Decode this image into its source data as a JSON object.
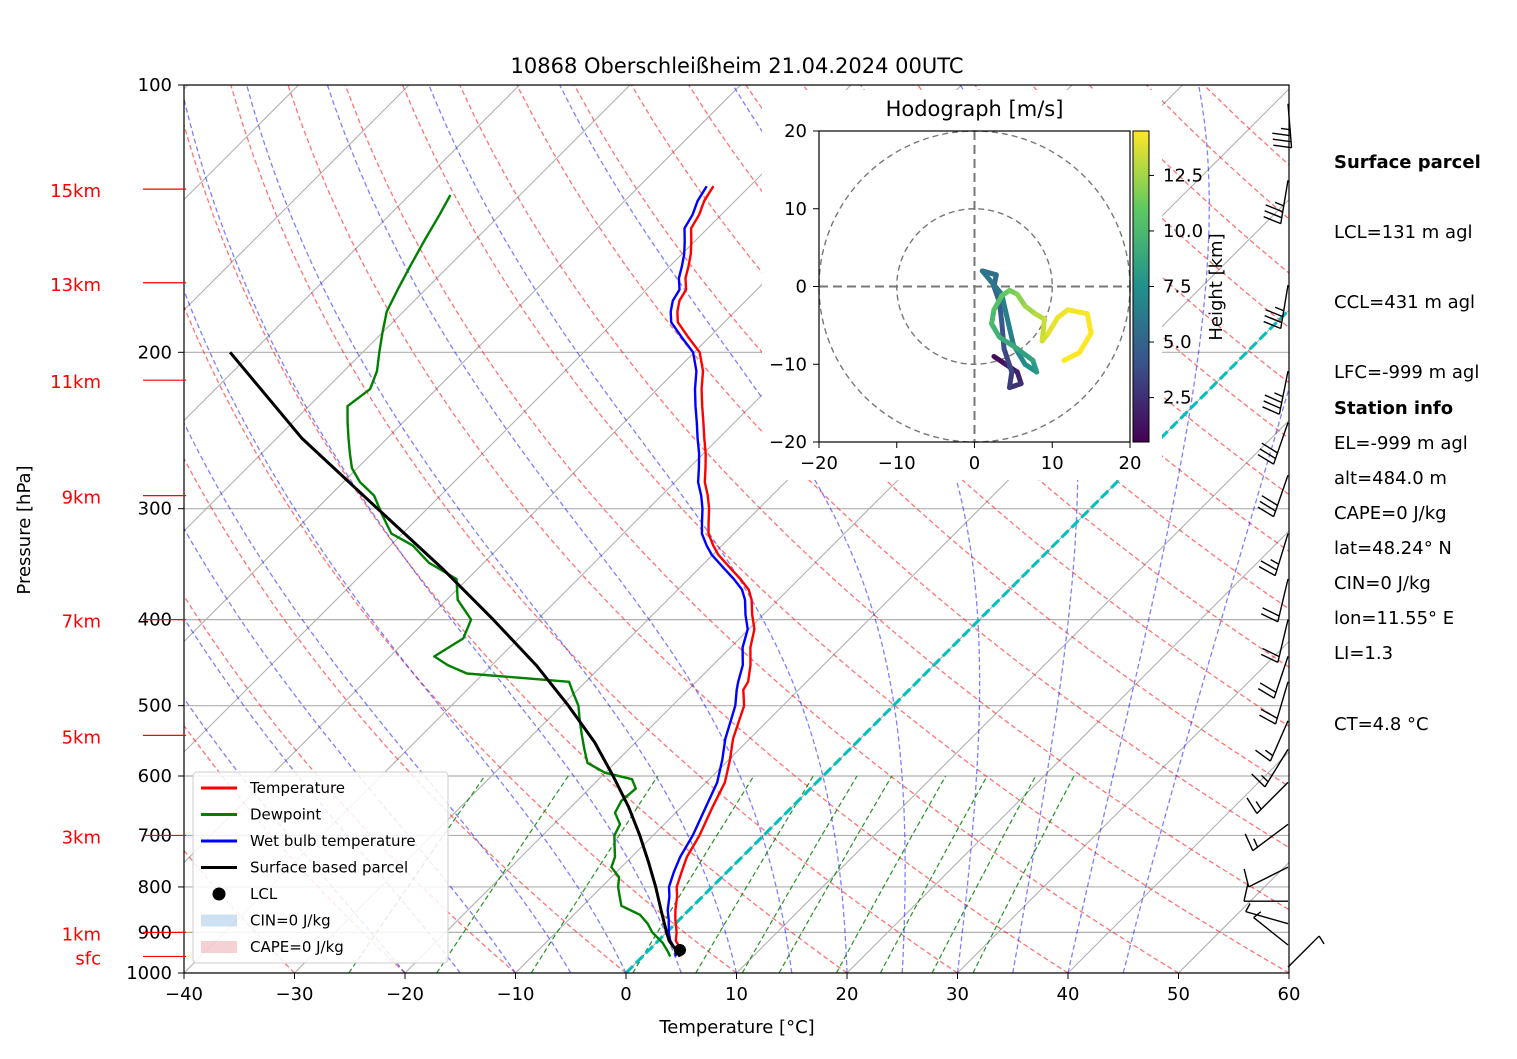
{
  "chart_data": {
    "type": "line",
    "title": "10868 Oberschleißheim 21.04.2024 00UTC",
    "xlabel": "Temperature [°C]",
    "ylabel": "Pressure [hPa]",
    "xlim": [
      -40,
      60
    ],
    "ylim": [
      1000,
      100
    ],
    "y_scale": "log",
    "skew": true,
    "x_ticks": [
      "−40",
      "−30",
      "−20",
      "−10",
      "0",
      "10",
      "20",
      "30",
      "40",
      "50",
      "60"
    ],
    "y_ticks": [
      "100",
      "200",
      "300",
      "400",
      "500",
      "600",
      "700",
      "800",
      "900",
      "1000"
    ],
    "height_labels": [
      {
        "label": "15km",
        "p": 131
      },
      {
        "label": "13km",
        "p": 167
      },
      {
        "label": "11km",
        "p": 215
      },
      {
        "label": "9km",
        "p": 290
      },
      {
        "label": "7km",
        "p": 400
      },
      {
        "label": "5km",
        "p": 540
      },
      {
        "label": "3km",
        "p": 700
      },
      {
        "label": "1km",
        "p": 900
      },
      {
        "label": "sfc",
        "p": 958
      }
    ],
    "series": [
      {
        "name": "Temperature",
        "color": "#ff0000",
        "points": [
          [
            3.4,
            958
          ],
          [
            2.8,
            940
          ],
          [
            1.6,
            920
          ],
          [
            0.9,
            900
          ],
          [
            -0.4,
            870
          ],
          [
            -1.2,
            850
          ],
          [
            -2.3,
            820
          ],
          [
            -3.2,
            800
          ],
          [
            -4.1,
            770
          ],
          [
            -5.0,
            740
          ],
          [
            -5.8,
            700
          ],
          [
            -7.2,
            650
          ],
          [
            -8.3,
            610
          ],
          [
            -9.9,
            575
          ],
          [
            -11.5,
            545
          ],
          [
            -13.5,
            500
          ],
          [
            -15.0,
            480
          ],
          [
            -15.3,
            470
          ],
          [
            -16.6,
            450
          ],
          [
            -18.2,
            430
          ],
          [
            -19.5,
            410
          ],
          [
            -21.0,
            395
          ],
          [
            -22.4,
            380
          ],
          [
            -23.6,
            370
          ],
          [
            -25.3,
            360
          ],
          [
            -27.2,
            350
          ],
          [
            -29.5,
            338
          ],
          [
            -30.8,
            330
          ],
          [
            -32.3,
            320
          ],
          [
            -33.4,
            310
          ],
          [
            -34.5,
            300
          ],
          [
            -35.8,
            290
          ],
          [
            -37.3,
            280
          ],
          [
            -38.5,
            270
          ],
          [
            -39.8,
            260
          ],
          [
            -41.3,
            250
          ],
          [
            -42.8,
            240
          ],
          [
            -44.4,
            230
          ],
          [
            -46.0,
            220
          ],
          [
            -47.5,
            210
          ],
          [
            -49.5,
            200
          ],
          [
            -52.0,
            192
          ],
          [
            -54.2,
            185
          ],
          [
            -55.2,
            180
          ],
          [
            -56.0,
            175
          ],
          [
            -56.4,
            170
          ],
          [
            -57.5,
            165
          ],
          [
            -58.3,
            160
          ],
          [
            -59.2,
            155
          ],
          [
            -60.3,
            150
          ],
          [
            -61.5,
            145
          ],
          [
            -62.0,
            140
          ],
          [
            -62.8,
            135
          ],
          [
            -63.3,
            130
          ]
        ]
      },
      {
        "name": "Dewpoint",
        "color": "#008000",
        "points": [
          [
            2.5,
            958
          ],
          [
            1.8,
            945
          ],
          [
            0.6,
            925
          ],
          [
            -1.3,
            900
          ],
          [
            -2.5,
            880
          ],
          [
            -4.0,
            860
          ],
          [
            -6.5,
            840
          ],
          [
            -7.5,
            820
          ],
          [
            -8.5,
            800
          ],
          [
            -9.3,
            780
          ],
          [
            -10.9,
            760
          ],
          [
            -11.5,
            740
          ],
          [
            -12.5,
            720
          ],
          [
            -13.5,
            700
          ],
          [
            -14.0,
            680
          ],
          [
            -15.5,
            660
          ],
          [
            -16.0,
            640
          ],
          [
            -15.8,
            620
          ],
          [
            -17.0,
            605
          ],
          [
            -20.0,
            595
          ],
          [
            -22.5,
            580
          ],
          [
            -24.0,
            560
          ],
          [
            -25.5,
            540
          ],
          [
            -27.0,
            520
          ],
          [
            -28.5,
            500
          ],
          [
            -30.5,
            480
          ],
          [
            -31.5,
            470
          ],
          [
            -41.5,
            460
          ],
          [
            -44.0,
            450
          ],
          [
            -46.0,
            440
          ],
          [
            -45.0,
            420
          ],
          [
            -46.0,
            400
          ],
          [
            -49.0,
            380
          ],
          [
            -51.0,
            360
          ],
          [
            -55.0,
            345
          ],
          [
            -58.0,
            330
          ],
          [
            -61.0,
            320
          ],
          [
            -63.5,
            305
          ],
          [
            -66.0,
            290
          ],
          [
            -68.5,
            280
          ],
          [
            -70.5,
            270
          ],
          [
            -72.0,
            260
          ],
          [
            -73.5,
            250
          ],
          [
            -75.0,
            240
          ],
          [
            -76.5,
            230
          ],
          [
            -76.0,
            220
          ],
          [
            -77.0,
            210
          ],
          [
            -78.5,
            200
          ],
          [
            -80.0,
            190
          ],
          [
            -81.5,
            180
          ],
          [
            -82.5,
            170
          ],
          [
            -83.5,
            160
          ],
          [
            -84.5,
            150
          ],
          [
            -85.5,
            140
          ],
          [
            -86.3,
            133
          ]
        ]
      },
      {
        "name": "Wet bulb temperature",
        "color": "#0000ff",
        "points": [
          [
            3.0,
            958
          ],
          [
            2.3,
            940
          ],
          [
            1.1,
            920
          ],
          [
            0.2,
            900
          ],
          [
            -1.0,
            870
          ],
          [
            -1.9,
            850
          ],
          [
            -3.0,
            820
          ],
          [
            -3.9,
            800
          ],
          [
            -4.8,
            770
          ],
          [
            -5.6,
            740
          ],
          [
            -6.4,
            700
          ],
          [
            -7.8,
            650
          ],
          [
            -9.0,
            610
          ],
          [
            -10.6,
            575
          ],
          [
            -12.2,
            545
          ],
          [
            -14.3,
            500
          ],
          [
            -15.6,
            480
          ],
          [
            -16.2,
            470
          ],
          [
            -17.3,
            450
          ],
          [
            -18.9,
            430
          ],
          [
            -20.1,
            410
          ],
          [
            -21.6,
            395
          ],
          [
            -23.0,
            380
          ],
          [
            -24.2,
            370
          ],
          [
            -25.9,
            360
          ],
          [
            -27.8,
            350
          ],
          [
            -30.1,
            338
          ],
          [
            -31.4,
            330
          ],
          [
            -32.9,
            320
          ],
          [
            -34.0,
            310
          ],
          [
            -35.1,
            300
          ],
          [
            -36.4,
            290
          ],
          [
            -37.9,
            280
          ],
          [
            -39.1,
            270
          ],
          [
            -40.4,
            260
          ],
          [
            -41.9,
            250
          ],
          [
            -43.4,
            240
          ],
          [
            -45.0,
            230
          ],
          [
            -46.6,
            220
          ],
          [
            -48.1,
            210
          ],
          [
            -50.1,
            200
          ],
          [
            -52.6,
            192
          ],
          [
            -54.8,
            185
          ],
          [
            -55.8,
            180
          ],
          [
            -56.6,
            175
          ],
          [
            -57.0,
            170
          ],
          [
            -58.1,
            165
          ],
          [
            -58.9,
            160
          ],
          [
            -59.8,
            155
          ],
          [
            -60.9,
            150
          ],
          [
            -62.1,
            145
          ],
          [
            -62.6,
            140
          ],
          [
            -63.4,
            135
          ],
          [
            -63.9,
            130
          ]
        ]
      },
      {
        "name": "Surface based parcel",
        "color": "#000000",
        "points": [
          [
            3.4,
            958
          ],
          [
            2.3,
            940
          ],
          [
            1.0,
            920
          ],
          [
            0.0,
            900
          ],
          [
            -2.5,
            850
          ],
          [
            -5.1,
            800
          ],
          [
            -8.0,
            750
          ],
          [
            -11.2,
            700
          ],
          [
            -14.8,
            650
          ],
          [
            -19.0,
            600
          ],
          [
            -23.7,
            550
          ],
          [
            -29.4,
            500
          ],
          [
            -36.0,
            450
          ],
          [
            -44.0,
            400
          ],
          [
            -53.3,
            350
          ],
          [
            -64.5,
            300
          ],
          [
            -77.7,
            250
          ],
          [
            -92.0,
            200
          ]
        ]
      }
    ],
    "lcl": {
      "label": "LCL",
      "t": 2.8,
      "p": 942
    },
    "legend": [
      "Temperature",
      "Dewpoint",
      "Wet bulb temperature",
      "Surface based parcel",
      "LCL",
      "CIN=0 J/kg",
      "CAPE=0 J/kg"
    ],
    "legend_position": "lower-left",
    "hodograph": {
      "title": "Hodograph [m/s]",
      "xlim": [
        -20,
        20
      ],
      "ylim": [
        -20,
        20
      ],
      "ticks": [
        "−20",
        "−10",
        "0",
        "10",
        "20"
      ],
      "rings": [
        10,
        20
      ],
      "colorbar_label": "Height [km]",
      "colorbar_ticks": [
        "2.5",
        "5.0",
        "7.5",
        "10.0",
        "12.5"
      ],
      "colorbar_range": [
        0.5,
        14.5
      ],
      "points": [
        [
          2.5,
          -9.0,
          0.5
        ],
        [
          4.0,
          -10.0,
          1.0
        ],
        [
          5.5,
          -11.0,
          1.5
        ],
        [
          6.0,
          -12.5,
          2.0
        ],
        [
          4.5,
          -13.0,
          2.5
        ],
        [
          4.8,
          -11.0,
          3.0
        ],
        [
          3.8,
          -8.0,
          3.5
        ],
        [
          3.5,
          -4.5,
          4.0
        ],
        [
          3.2,
          -2.0,
          4.5
        ],
        [
          2.5,
          0.0,
          5.0
        ],
        [
          2.8,
          1.5,
          5.2
        ],
        [
          1.0,
          2.0,
          5.5
        ],
        [
          3.5,
          -1.0,
          6.0
        ],
        [
          5.0,
          -7.5,
          6.5
        ],
        [
          6.5,
          -10.0,
          7.0
        ],
        [
          8.0,
          -11.0,
          7.5
        ],
        [
          7.5,
          -9.5,
          8.0
        ],
        [
          5.5,
          -8.0,
          8.5
        ],
        [
          3.2,
          -6.5,
          9.0
        ],
        [
          2.2,
          -4.8,
          9.5
        ],
        [
          2.5,
          -3.0,
          10.0
        ],
        [
          3.5,
          -1.2,
          10.5
        ],
        [
          4.5,
          -0.5,
          11.0
        ],
        [
          5.5,
          -1.0,
          11.5
        ],
        [
          6.5,
          -2.5,
          12.0
        ],
        [
          7.8,
          -3.5,
          12.5
        ],
        [
          9.0,
          -4.2,
          13.0
        ],
        [
          8.7,
          -7.0,
          13.3
        ],
        [
          9.5,
          -6.0,
          13.6
        ],
        [
          10.7,
          -4.0,
          14.0
        ],
        [
          12.0,
          -3.0,
          14.2
        ],
        [
          14.5,
          -3.5,
          14.3
        ],
        [
          15.0,
          -6.0,
          14.4
        ],
        [
          13.5,
          -8.5,
          14.5
        ],
        [
          11.5,
          -9.5,
          14.5
        ]
      ]
    },
    "wind_barbs": [
      {
        "p": 105,
        "u": -3,
        "v": 37
      },
      {
        "p": 128,
        "u": 6,
        "v": 36
      },
      {
        "p": 168,
        "u": 6,
        "v": 36
      },
      {
        "p": 210,
        "u": 7,
        "v": 35
      },
      {
        "p": 240,
        "u": 9,
        "v": 26
      },
      {
        "p": 275,
        "u": 9,
        "v": 26
      },
      {
        "p": 320,
        "u": 7,
        "v": 23
      },
      {
        "p": 360,
        "u": 5,
        "v": 21
      },
      {
        "p": 400,
        "u": 5,
        "v": 21
      },
      {
        "p": 440,
        "u": 6,
        "v": 18
      },
      {
        "p": 470,
        "u": 5,
        "v": 17
      },
      {
        "p": 520,
        "u": 7,
        "v": 16
      },
      {
        "p": 560,
        "u": 8,
        "v": 13
      },
      {
        "p": 610,
        "u": 12,
        "v": 12
      },
      {
        "p": 680,
        "u": 12,
        "v": 9
      },
      {
        "p": 760,
        "u": 10,
        "v": 5
      },
      {
        "p": 830,
        "u": 9,
        "v": 0
      },
      {
        "p": 880,
        "u": 7,
        "v": -2
      },
      {
        "p": 930,
        "u": 5,
        "v": -4
      },
      {
        "p": 985,
        "u": -3,
        "v": -3
      }
    ]
  },
  "info": {
    "surface_title": "Surface parcel",
    "surface_lines": [
      "LCL=131 m agl",
      "CCL=431 m agl",
      "LFC=-999 m agl",
      "EL=-999 m agl",
      "CAPE=0 J/kg",
      "CIN=0 J/kg",
      "LI=1.3",
      "CT=4.8 °C"
    ],
    "station_title": "Station info",
    "station_lines": [
      "alt=484.0 m",
      "lat=48.24° N",
      "lon=11.55° E"
    ]
  },
  "colors": {
    "temperature": "#ff0000",
    "dewpoint": "#008000",
    "wetbulb": "#0000ff",
    "parcel": "#000000",
    "freezing_level": "#00bfbf",
    "height_labels": "#ff0000",
    "dry_adiabats": "#ff0000",
    "moist_adiabats": "#0000ff",
    "mixing_ratio": "#008000",
    "isotherms": "#999999"
  }
}
